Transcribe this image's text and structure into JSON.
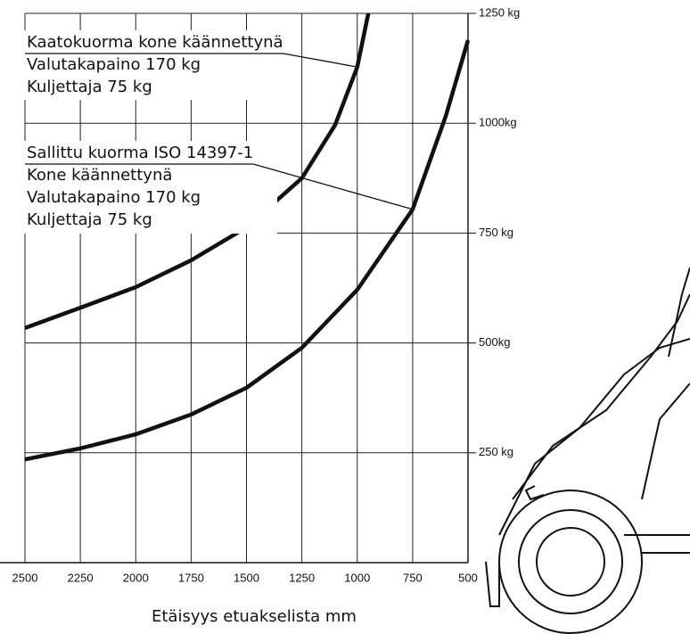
{
  "chart_data": {
    "type": "line",
    "xlabel": "Etäisyys etuakselista mm",
    "x": [
      2500,
      2250,
      2000,
      1750,
      1500,
      1250,
      1100,
      1000,
      950
    ],
    "series": [
      {
        "name": "Kaatokuorma kone käännettynä",
        "color": "#111111",
        "notes": [
          "Valutakapaino 170 kg",
          "Kuljettaja 75 kg"
        ],
        "x": [
          2500,
          2250,
          2000,
          1750,
          1500,
          1250,
          1100,
          1000,
          950
        ],
        "values": [
          534,
          580,
          627,
          688,
          763,
          875,
          996,
          1128,
          1250
        ]
      },
      {
        "name": "Sallittu kuorma ISO 14397-1",
        "color": "#111111",
        "notes": [
          "Kone käännettynä",
          "Valutakapaino 170 kg",
          "Kuljettaja 75 kg"
        ],
        "x": [
          2500,
          2250,
          2000,
          1750,
          1500,
          1250,
          1000,
          750,
          600,
          500
        ],
        "values": [
          235,
          260,
          292,
          337,
          398,
          489,
          621,
          804,
          1017,
          1189
        ]
      }
    ],
    "xlim": [
      2500,
      500
    ],
    "xticks": [
      2500,
      2250,
      2000,
      1750,
      1500,
      1250,
      1000,
      750,
      500
    ],
    "ylim": [
      0,
      1250
    ],
    "yticks": [
      {
        "value": 250,
        "label": "250 kg"
      },
      {
        "value": 500,
        "label": "500kg"
      },
      {
        "value": 750,
        "label": "750 kg"
      },
      {
        "value": 1000,
        "label": "1000kg"
      },
      {
        "value": 1250,
        "label": "1250 kg"
      }
    ],
    "grid": true
  }
}
